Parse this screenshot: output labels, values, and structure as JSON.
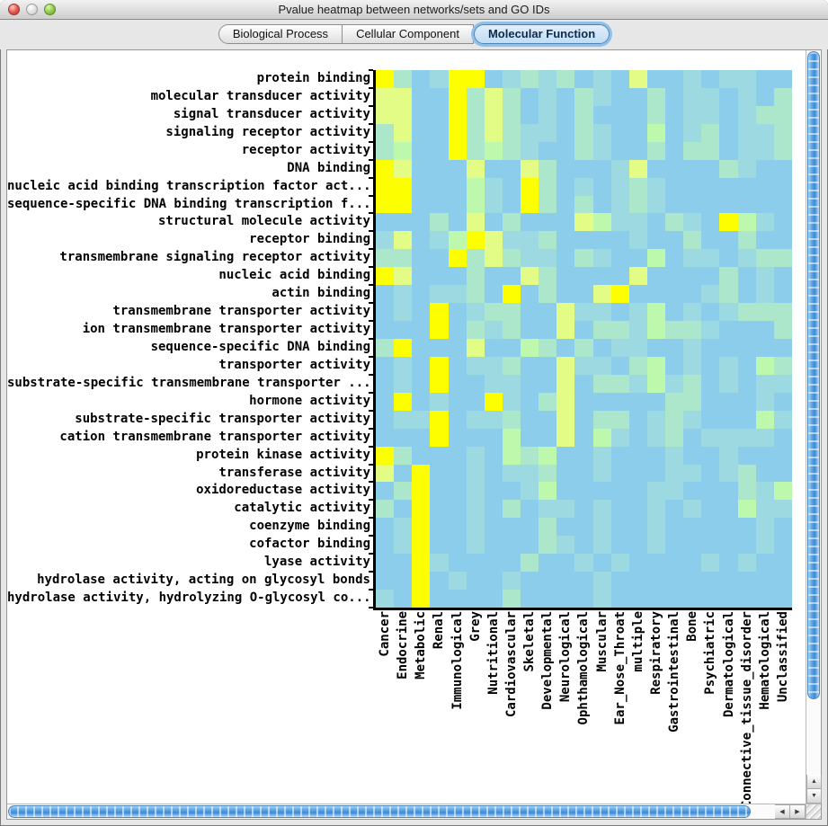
{
  "window": {
    "title": "Pvalue heatmap between networks/sets and GO IDs"
  },
  "icons": {
    "scroll_up": "▲",
    "scroll_down": "▼",
    "scroll_left": "◀",
    "scroll_right": "▶"
  },
  "tabs": [
    {
      "label": "Biological Process",
      "selected": false
    },
    {
      "label": "Cellular Component",
      "selected": false
    },
    {
      "label": "Molecular Function",
      "selected": true
    }
  ],
  "chart_data": {
    "type": "heatmap",
    "title": "Pvalue heatmap between networks/sets and GO IDs",
    "legend_position": "none",
    "grid_lines": false,
    "rows": [
      "protein binding",
      "molecular transducer activity",
      "signal transducer activity",
      "signaling receptor activity",
      "receptor activity",
      "DNA binding",
      "nucleic acid binding transcription factor act...",
      "sequence-specific DNA binding transcription f...",
      "structural molecule activity",
      "receptor binding",
      "transmembrane signaling receptor activity",
      "nucleic acid binding",
      "actin binding",
      "transmembrane transporter activity",
      "ion transmembrane transporter activity",
      "sequence-specific DNA binding",
      "transporter activity",
      "substrate-specific transmembrane transporter ...",
      "hormone activity",
      "substrate-specific transporter activity",
      "cation transmembrane transporter activity",
      "protein kinase activity",
      "transferase activity",
      "oxidoreductase activity",
      "catalytic activity",
      "coenzyme binding",
      "cofactor binding",
      "lyase activity",
      "hydrolase activity, acting on glycosyl bonds",
      "hydrolase activity, hydrolyzing O-glycosyl co..."
    ],
    "columns": [
      "Cancer",
      "Endocrine",
      "Metabolic",
      "Renal",
      "Immunological",
      "Grey",
      "Nutritional",
      "Cardiovascular",
      "Skeletal",
      "Developmental",
      "Neurological",
      "Ophthamological",
      "Muscular",
      "Ear_Nose_Throat",
      "multiple",
      "Respiratory",
      "Gastrointestinal",
      "Bone",
      "Psychiatric",
      "Dermatological",
      "Connective_tissue_disorder",
      "Hematological",
      "Unclassified"
    ],
    "palette": {
      "b": "#8ccdeb",
      "a": "#9dd9e1",
      "m": "#ace6cb",
      "g": "#bdf8ac",
      "y": "#e2fc85",
      "Y": "#fdff00"
    },
    "palette_meaning": {
      "b": "weak / background p-value (blue)",
      "Y": "strongest enrichment (yellow)"
    },
    "grid": [
      "YmbaYYbamambabybbabaabb",
      "yybbYmymbabmabbmbaababm",
      "yybbYmymbabmbbbmbaabamm",
      "mybbYmymaabmabbgbambaam",
      "mgbbYmgmabbmabbmbmmbaam",
      "Yybbbybbymbbbaybbbbmabb",
      "YYbbbgabYmbabamabbbbbbb",
      "YYbbbgabYmbmbamabbbbbbb",
      "bbbmbybmbbbygaabmabYgab",
      "aybagYyaambbbbabbmbbmbb",
      "mmbbYmymaabmabbgbaabamm",
      "Yybbbmbbymbbbbybbbbmbab",
      "babaambYbmbbyYbbbbambab",
      "babYbammbbyaabagbabammm",
      "bbbYbmambbybmmagmmabbbm",
      "mYbbbybbgmbmbaabbabbbbb",
      "babYbaambbyaabmgbababgm",
      "babYbbaabbybmmagambabaa",
      "bYbabbYabmybbbbbmmbbbab",
      "baaYbaambbybmmbamabbbga",
      "bbbYbbbgbbybgabambaaaab",
      "Ymbbbabgmgbbabbbabbabbb",
      "ybYbbabaambbabbbaabambb",
      "bmYbbabbagbbbbbaabbbmag",
      "mbYbbabmbaababbababbgaa",
      "baYbbabbbmbbabbabbbbbab",
      "baYbbabbbmababbabbbbbab",
      "bbYabbbbmbbababbbbababb",
      "bbYbabbabbbbabbbbbbbbbb",
      "abYbbbbmbbbbabbbbbbbbbb"
    ]
  }
}
